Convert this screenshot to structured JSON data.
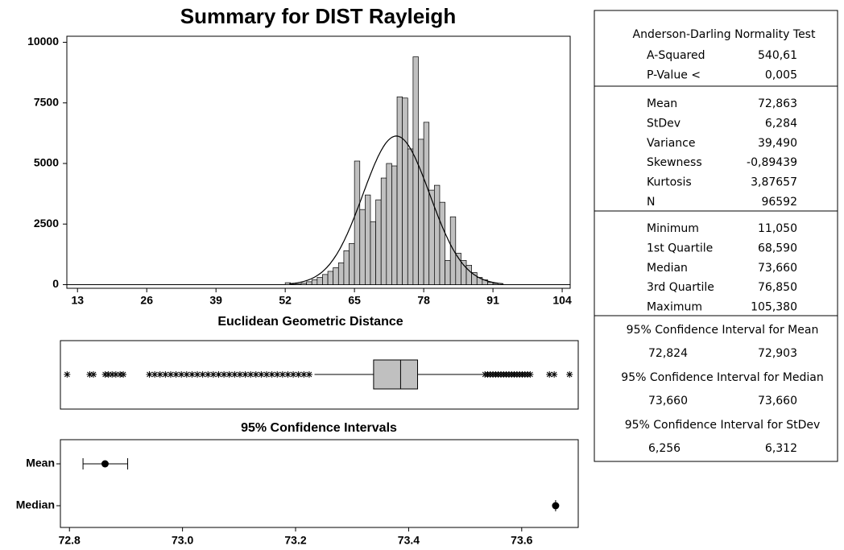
{
  "title": "Summary for DIST Rayleigh",
  "chart_data": [
    {
      "type": "histogram",
      "xlabel": "Euclidean Geometric Distance",
      "bins": [
        52,
        53,
        54,
        55,
        56,
        57,
        58,
        59,
        60,
        61,
        62,
        63,
        64,
        65,
        66,
        67,
        68,
        69,
        70,
        71,
        72,
        73,
        74,
        75,
        76,
        77,
        78,
        79,
        80,
        81,
        82,
        83,
        84,
        85,
        86,
        87,
        88,
        89,
        90,
        91,
        92
      ],
      "values": [
        80,
        20,
        30,
        60,
        120,
        200,
        300,
        420,
        550,
        700,
        900,
        1400,
        1700,
        5100,
        3100,
        3700,
        2600,
        3500,
        4400,
        5000,
        4900,
        7750,
        7700,
        5600,
        9400,
        6000,
        6700,
        3900,
        4100,
        3400,
        1000,
        2800,
        1300,
        1000,
        800,
        500,
        300,
        200,
        100,
        50
      ],
      "color": "#c0c0c0",
      "normal_fit": {
        "mean": 72.863,
        "stdev": 6.284,
        "n": 96592
      },
      "xlim": [
        11,
        105.5
      ],
      "xticks": [
        13,
        26,
        39,
        52,
        65,
        78,
        91,
        104
      ],
      "ylim": [
        -150,
        10250
      ],
      "yticks": [
        0,
        2500,
        5000,
        7500,
        10000
      ]
    },
    {
      "type": "box",
      "color": "#c0c0c0",
      "xlim": [
        11,
        105.5
      ],
      "whisker_low": 57.5,
      "q1": 68.59,
      "median": 73.66,
      "q3": 76.85,
      "whisker_high": 89.2,
      "outliers": [
        11.05,
        15.3,
        16.0,
        18.2,
        18.8,
        19.5,
        20.2,
        21.0,
        21.6,
        26.5,
        27.5,
        28.5,
        29.5,
        30.5,
        31.5,
        32.5,
        33.5,
        34.5,
        35.5,
        36.5,
        37.5,
        38.5,
        39.5,
        40.5,
        41.5,
        42.5,
        43.5,
        44.5,
        45.5,
        46.5,
        47.5,
        48.5,
        49.5,
        50.5,
        51.5,
        52.5,
        53.5,
        54.5,
        55.5,
        56.5,
        89.5,
        90.0,
        90.5,
        91.0,
        91.5,
        92.0,
        92.5,
        93.0,
        93.5,
        94.0,
        94.5,
        95.0,
        95.5,
        96.0,
        96.5,
        97.0,
        97.5,
        98.0,
        101.6,
        102.5,
        105.38
      ]
    },
    {
      "type": "interval",
      "title": "95% Confidence Intervals",
      "categories": [
        "Mean",
        "Median"
      ],
      "values": [
        72.863,
        73.66
      ],
      "lower": [
        72.824,
        73.66
      ],
      "upper": [
        72.903,
        73.66
      ],
      "xlim": [
        72.784,
        73.7
      ],
      "xticks": [
        72.8,
        {
          "value": 73,
          "label": "73.0"
        },
        73.2,
        73.4,
        73.6
      ]
    }
  ],
  "stats_panel": {
    "sections": [
      {
        "heading": "Anderson-Darling Normality Test",
        "rows": [
          [
            "A-Squared",
            "540,61"
          ],
          [
            "P-Value <",
            "0,005"
          ]
        ]
      },
      {
        "rows": [
          [
            "Mean",
            "72,863"
          ],
          [
            "StDev",
            "6,284"
          ],
          [
            "Variance",
            "39,490"
          ],
          [
            "Skewness",
            "-0,89439"
          ],
          [
            "Kurtosis",
            "3,87657"
          ],
          [
            "N",
            "96592"
          ]
        ]
      },
      {
        "rows": [
          [
            "Minimum",
            "11,050"
          ],
          [
            "1st Quartile",
            "68,590"
          ],
          [
            "Median",
            "73,660"
          ],
          [
            "3rd Quartile",
            "76,850"
          ],
          [
            "Maximum",
            "105,380"
          ]
        ]
      },
      {
        "intervals": [
          {
            "heading": "95% Confidence Interval for Mean",
            "values": [
              "72,824",
              "72,903"
            ]
          },
          {
            "heading": "95% Confidence Interval for Median",
            "values": [
              "73,660",
              "73,660"
            ]
          },
          {
            "heading": "95% Confidence Interval for StDev",
            "values": [
              "6,256",
              "6,312"
            ]
          }
        ]
      }
    ]
  }
}
